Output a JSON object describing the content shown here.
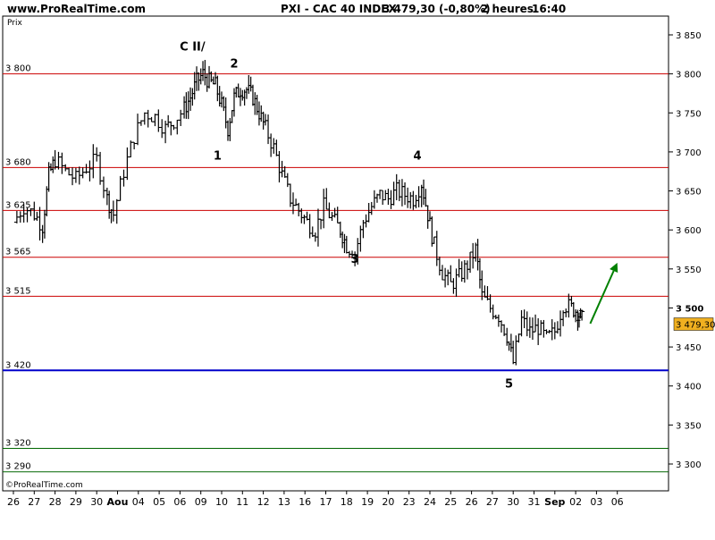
{
  "header": {
    "site": "www.ProRealTime.com",
    "title": "PXI - CAC 40 INDEX",
    "last": "3 479,30 (-0,80%)",
    "timeframe": "2 heures",
    "time": "16:40"
  },
  "panel": {
    "ylabel": "Prix",
    "copyright": "©ProRealTime.com"
  },
  "colors": {
    "candle": "#000000",
    "resistance": "#cc0000",
    "support": "#0000cc",
    "target": "#006600",
    "arrow": "#008000",
    "price_box": "#f0b020"
  },
  "chart_data": {
    "type": "line",
    "series_style": "ohlc-bars",
    "ylim": [
      3270,
      3870
    ],
    "yticks": [
      3300,
      3350,
      3400,
      3450,
      3500,
      3550,
      3600,
      3650,
      3700,
      3750,
      3800,
      3850
    ],
    "ytick_labels": [
      "3 300",
      "3 350",
      "3 400",
      "3 450",
      "3 500",
      "3 550",
      "3 600",
      "3 650",
      "3 700",
      "3 750",
      "3 800",
      "3 850"
    ],
    "bold_ytick": "3 500",
    "last_price_label": "3 479,30",
    "last_price": 3479.3,
    "xtick_labels": [
      "26",
      "27",
      "28",
      "29",
      "30",
      "Aou",
      "04",
      "05",
      "06",
      "09",
      "10",
      "11",
      "12",
      "13",
      "16",
      "17",
      "18",
      "19",
      "20",
      "23",
      "24",
      "25",
      "26",
      "27",
      "30",
      "31",
      "Sep",
      "02",
      "03",
      "06"
    ],
    "bold_xticks": [
      "Aou",
      "Sep"
    ],
    "horizontal_levels": [
      {
        "label": "3 800",
        "value": 3800,
        "style": "resistance"
      },
      {
        "label": "3 680",
        "value": 3680,
        "style": "resistance"
      },
      {
        "label": "3 625",
        "value": 3625,
        "style": "resistance"
      },
      {
        "label": "3 565",
        "value": 3565,
        "style": "resistance"
      },
      {
        "label": "3 515",
        "value": 3515,
        "style": "resistance"
      },
      {
        "label": "3 420",
        "value": 3420,
        "style": "support"
      },
      {
        "label": "3 320",
        "value": 3320,
        "style": "target"
      },
      {
        "label": "3 290",
        "value": 3290,
        "style": "target"
      }
    ],
    "wave_labels": [
      {
        "text": "C II/",
        "x": 8.6,
        "y": 3830
      },
      {
        "text": "2",
        "x": 10.6,
        "y": 3808
      },
      {
        "text": "1",
        "x": 9.8,
        "y": 3690
      },
      {
        "text": "4",
        "x": 19.4,
        "y": 3690
      },
      {
        "text": "3",
        "x": 16.4,
        "y": 3558
      },
      {
        "text": "5",
        "x": 23.8,
        "y": 3398
      }
    ],
    "arrow": {
      "from": [
        27.7,
        3480
      ],
      "to": [
        29.0,
        3558
      ]
    },
    "path": [
      [
        0.0,
        3610
      ],
      [
        0.5,
        3630
      ],
      [
        1.0,
        3620
      ],
      [
        1.4,
        3605
      ],
      [
        1.7,
        3670
      ],
      [
        2.0,
        3690
      ],
      [
        2.5,
        3675
      ],
      [
        3.0,
        3665
      ],
      [
        3.5,
        3680
      ],
      [
        4.0,
        3690
      ],
      [
        4.5,
        3640
      ],
      [
        4.8,
        3620
      ],
      [
        5.3,
        3675
      ],
      [
        5.8,
        3720
      ],
      [
        6.3,
        3750
      ],
      [
        6.8,
        3745
      ],
      [
        7.3,
        3730
      ],
      [
        7.7,
        3740
      ],
      [
        8.2,
        3755
      ],
      [
        8.5,
        3770
      ],
      [
        8.8,
        3790
      ],
      [
        9.1,
        3800
      ],
      [
        9.4,
        3790
      ],
      [
        9.7,
        3785
      ],
      [
        10.0,
        3760
      ],
      [
        10.3,
        3730
      ],
      [
        10.6,
        3770
      ],
      [
        10.9,
        3780
      ],
      [
        11.2,
        3780
      ],
      [
        11.5,
        3770
      ],
      [
        11.8,
        3750
      ],
      [
        12.1,
        3730
      ],
      [
        12.5,
        3705
      ],
      [
        12.9,
        3670
      ],
      [
        13.3,
        3640
      ],
      [
        13.7,
        3625
      ],
      [
        14.1,
        3610
      ],
      [
        14.5,
        3600
      ],
      [
        14.9,
        3630
      ],
      [
        15.3,
        3615
      ],
      [
        15.7,
        3600
      ],
      [
        16.0,
        3580
      ],
      [
        16.4,
        3570
      ],
      [
        16.8,
        3610
      ],
      [
        17.2,
        3630
      ],
      [
        17.6,
        3645
      ],
      [
        18.0,
        3640
      ],
      [
        18.4,
        3650
      ],
      [
        18.8,
        3645
      ],
      [
        19.2,
        3640
      ],
      [
        19.6,
        3660
      ],
      [
        19.9,
        3620
      ],
      [
        20.2,
        3580
      ],
      [
        20.6,
        3545
      ],
      [
        21.0,
        3530
      ],
      [
        21.4,
        3540
      ],
      [
        21.8,
        3555
      ],
      [
        22.2,
        3575
      ],
      [
        22.5,
        3515
      ],
      [
        22.9,
        3500
      ],
      [
        23.3,
        3490
      ],
      [
        23.7,
        3465
      ],
      [
        24.0,
        3430
      ],
      [
        24.4,
        3485
      ],
      [
        24.8,
        3470
      ],
      [
        25.2,
        3475
      ],
      [
        25.6,
        3460
      ],
      [
        26.0,
        3470
      ],
      [
        26.4,
        3505
      ],
      [
        26.8,
        3500
      ],
      [
        27.1,
        3495
      ],
      [
        27.3,
        3485
      ]
    ]
  }
}
